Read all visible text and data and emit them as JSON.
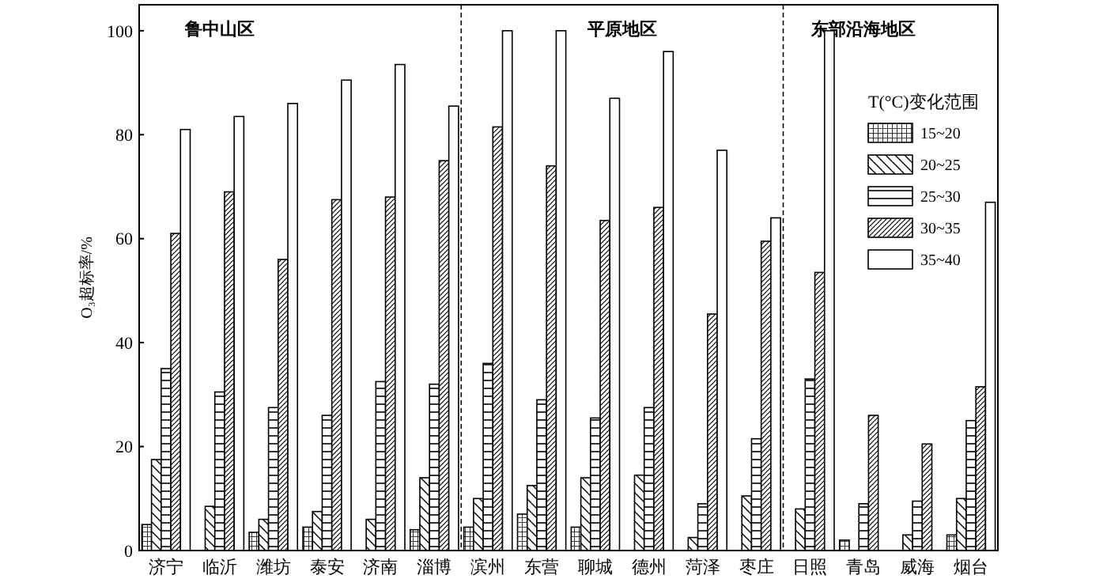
{
  "chart_data": {
    "type": "bar",
    "ylabel": "O₃超标率/%",
    "legend_title": "T(°C)变化范围",
    "legend": "top right",
    "grid": false,
    "categories": [
      "济宁",
      "临沂",
      "潍坊",
      "泰安",
      "济南",
      "淄博",
      "滨州",
      "东营",
      "聊城",
      "德州",
      "菏泽",
      "枣庄",
      "日照",
      "青岛",
      "威海",
      "烟台"
    ],
    "series": [
      {
        "name": "15~20",
        "color": "#000000",
        "values": [
          5,
          0,
          3.5,
          4.5,
          0,
          4,
          4.5,
          7,
          4.5,
          0,
          0,
          0,
          0,
          2,
          0,
          3
        ]
      },
      {
        "name": "20~25",
        "color": "#000000",
        "values": [
          17.5,
          8.5,
          6,
          7.5,
          6,
          14,
          10,
          12.5,
          14,
          14.5,
          2.5,
          10.5,
          8,
          0,
          3,
          10
        ]
      },
      {
        "name": "25~30",
        "color": "#000000",
        "values": [
          35,
          30.5,
          27.5,
          26,
          32.5,
          32,
          36,
          29,
          25.5,
          27.5,
          9,
          21.5,
          33,
          9,
          9.5,
          25
        ]
      },
      {
        "name": "30~35",
        "color": "#000000",
        "values": [
          61,
          69,
          56,
          67.5,
          68,
          75,
          81.5,
          74,
          63.5,
          66,
          45.5,
          59.5,
          53.5,
          26,
          20.5,
          31.5
        ]
      },
      {
        "name": "35~40",
        "color": "#000000",
        "values": [
          81,
          83.5,
          86,
          90.5,
          93.5,
          85.5,
          100,
          100,
          87,
          96,
          77,
          64,
          100,
          0,
          0,
          67
        ]
      }
    ],
    "ylim": [
      0,
      105
    ],
    "yticks": [
      0,
      20,
      40,
      60,
      80,
      100
    ],
    "annotations": [
      "鲁中山区",
      "平原地区",
      "东部沿海地区"
    ]
  }
}
